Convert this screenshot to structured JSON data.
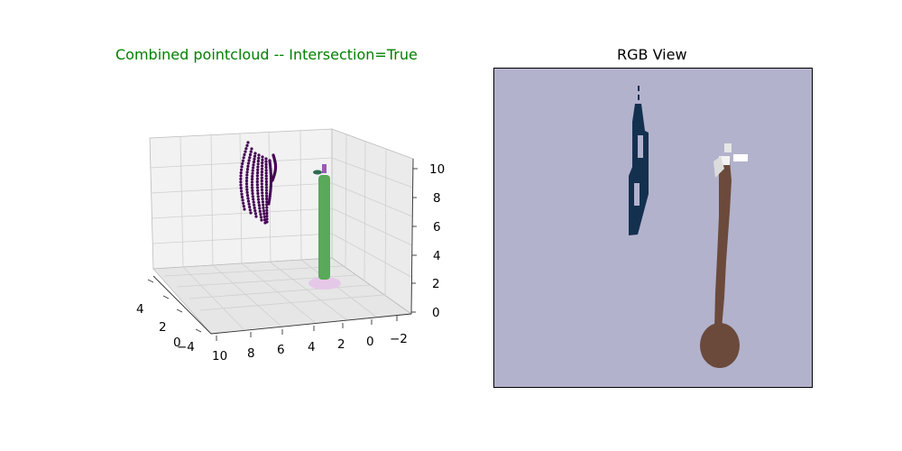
{
  "chart_data": [
    {
      "type": "scatter3d",
      "title": "Combined pointcloud -- Intersection=True",
      "title_color": "#008000",
      "axes": {
        "x_ticks": [
          "4",
          "2",
          "0",
          "−4"
        ],
        "y_ticks": [
          "10",
          "8",
          "6",
          "4",
          "2",
          "0",
          "−2"
        ],
        "z_ticks": [
          "0",
          "2",
          "4",
          "6",
          "8",
          "10"
        ],
        "zlim": [
          0,
          10
        ],
        "grid": true
      },
      "series": [
        {
          "color": "#440154",
          "shape": "curved vertical point strips"
        },
        {
          "color": "#5aa85a",
          "shape": "vertical column"
        },
        {
          "color": "#e5c8e8",
          "shape": "base disc"
        },
        {
          "color": "#9b59b6",
          "shape": "small marker at top"
        },
        {
          "color": "#2e6b4f",
          "shape": "small marker at top"
        }
      ]
    },
    {
      "type": "image",
      "title": "RGB View",
      "background_color": "#b2b2cc",
      "objects": [
        {
          "color": "#14304f",
          "shape": "dark narrow object, upper-left"
        },
        {
          "color": "#6b4a3c",
          "shape": "rusty rod with bulb base and white tip, right"
        }
      ]
    }
  ]
}
